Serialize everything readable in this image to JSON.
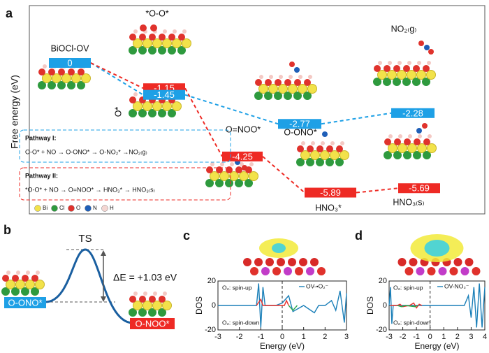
{
  "panel_a": {
    "label": "a",
    "y_axis_label": "Free energy (eV)",
    "levels": [
      {
        "value": 0,
        "color": "#1ea0e6"
      },
      {
        "value": -1.15,
        "color": "#ee2a24"
      },
      {
        "value": -1.45,
        "color": "#1ea0e6"
      },
      {
        "value": -2.77,
        "color": "#1ea0e6"
      },
      {
        "value": -2.28,
        "color": "#1ea0e6"
      },
      {
        "value": -4.25,
        "color": "#ee2a24"
      },
      {
        "value": -5.89,
        "color": "#ee2a24"
      },
      {
        "value": -5.69,
        "color": "#ee2a24"
      }
    ],
    "species": [
      "BiOCl-OV",
      "*O-O*",
      "O*",
      "O=NOO*",
      "O-ONO*",
      "NO₂₍g₎",
      "HNO₃*",
      "HNO₃₍s₎"
    ],
    "pathways": [
      {
        "title": "Pathway I:",
        "equation": "O-O* + NO → O-ONO* → O-NO₂* →NO₂₍g₎",
        "color": "#1ea0e6"
      },
      {
        "title": "Pathway II:",
        "equation": "*O-O* + NO → O=NOO* → HNO₃* → HNO₃₍s₎",
        "color": "#ee2a24"
      }
    ],
    "atom_legend": [
      "Bi",
      "Cl",
      "O",
      "N",
      "H"
    ]
  },
  "panel_b": {
    "label": "b",
    "ts_label": "TS",
    "barrier": "ΔE = +1.03 eV",
    "start": "O-ONO*",
    "end": "O-NOO*"
  },
  "chart_data": [
    {
      "type": "line",
      "label": "c",
      "x_label": "Energy (eV)",
      "y_label": "DOS",
      "xlim": [
        -3,
        3
      ],
      "xticks": [
        -3,
        -2,
        -1,
        0,
        1,
        2,
        3
      ],
      "ylim": [
        -20,
        20
      ],
      "yticks": [
        -20,
        0,
        20
      ],
      "series": [
        {
          "name": "OV-•O₂⁻",
          "color": "#1a7fb8",
          "x": [
            -3,
            -1.2,
            -1.1,
            -1.0,
            -0.9,
            -0.8,
            -0.3,
            0,
            0.3,
            0.5,
            1,
            1.5,
            1.7,
            2,
            2.3,
            2.5,
            2.7,
            2.9,
            3
          ],
          "values": [
            0,
            0,
            18,
            -18,
            15,
            0,
            0,
            2,
            8,
            -5,
            0,
            -6,
            0,
            0,
            4,
            -4,
            12,
            -14,
            10
          ]
        },
        {
          "name": "O₂: spin-up",
          "color": "#e8302a",
          "x": [
            -1.2,
            -1.0,
            -0.9,
            0.1,
            0.2,
            0.3
          ],
          "values": [
            0,
            5,
            0,
            0,
            4,
            0
          ]
        },
        {
          "name": "O₂: spin-down",
          "color": "#2aa84a",
          "x": [
            0.3,
            0.5,
            0.7
          ],
          "values": [
            0,
            -4,
            0
          ]
        }
      ]
    },
    {
      "type": "line",
      "label": "d",
      "x_label": "Energy (eV)",
      "y_label": "DOS",
      "xlim": [
        -3,
        4
      ],
      "xticks": [
        -3,
        -2,
        -1,
        0,
        1,
        2,
        3,
        4
      ],
      "ylim": [
        -20,
        20
      ],
      "yticks": [
        -20,
        0,
        20
      ],
      "series": [
        {
          "name": "OV-NO₃⁻",
          "color": "#1a7fb8",
          "x": [
            -3,
            -2.9,
            -2.8,
            -2.7,
            -2.5,
            2,
            2.5,
            2.8,
            3,
            3.2,
            3.4,
            3.6,
            3.8,
            4
          ],
          "values": [
            0,
            15,
            -15,
            0,
            0,
            0,
            0,
            8,
            -10,
            15,
            -18,
            18,
            -18,
            15
          ]
        },
        {
          "name": "O₂: spin-up",
          "color": "#e8302a",
          "x": [
            -2.9,
            -2.4,
            -2.2,
            -2.0,
            -1.5,
            -1.2,
            -1.0,
            -0.8,
            -0.6
          ],
          "values": [
            0,
            0,
            1,
            -1,
            0,
            2,
            -2,
            1,
            0
          ]
        },
        {
          "name": "O₂: spin-down",
          "color": "#2aa84a",
          "x": [
            -2.4,
            -2.1,
            -1.8,
            -1.1,
            -0.9
          ],
          "values": [
            0,
            -1,
            0,
            -1,
            0
          ]
        }
      ]
    }
  ]
}
